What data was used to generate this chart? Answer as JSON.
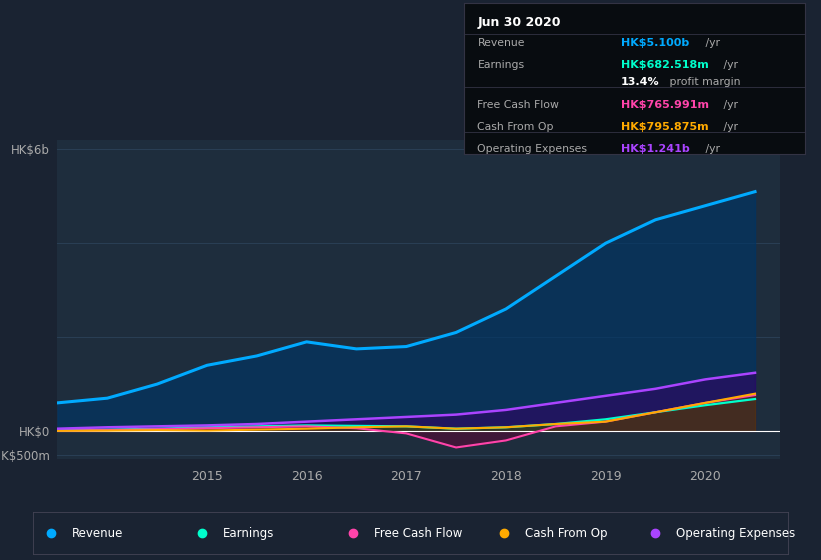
{
  "bg_color": "#1a2332",
  "plot_bg_color": "#1e2d3d",
  "grid_color": "#2a3f55",
  "years": [
    2013.5,
    2014.0,
    2014.5,
    2015.0,
    2015.5,
    2016.0,
    2016.5,
    2017.0,
    2017.5,
    2018.0,
    2018.5,
    2019.0,
    2019.5,
    2020.0,
    2020.5
  ],
  "revenue": [
    600,
    700,
    1000,
    1400,
    1600,
    1900,
    1750,
    1800,
    2100,
    2600,
    3300,
    4000,
    4500,
    4800,
    5100
  ],
  "earnings": [
    20,
    30,
    50,
    80,
    100,
    120,
    110,
    100,
    50,
    80,
    150,
    250,
    400,
    550,
    682
  ],
  "free_cash_flow": [
    10,
    20,
    40,
    60,
    80,
    100,
    60,
    -50,
    -350,
    -200,
    100,
    200,
    400,
    600,
    766
  ],
  "cash_from_op": [
    5,
    10,
    20,
    10,
    30,
    50,
    80,
    100,
    50,
    80,
    150,
    200,
    400,
    600,
    796
  ],
  "operating_expenses": [
    50,
    80,
    100,
    120,
    150,
    200,
    250,
    300,
    350,
    450,
    600,
    750,
    900,
    1100,
    1241
  ],
  "revenue_color": "#00aaff",
  "earnings_color": "#00ffcc",
  "fcf_color": "#ff44aa",
  "cashop_color": "#ffaa00",
  "opex_color": "#aa44ff",
  "revenue_fill": "#003566",
  "earnings_fill": "#004433",
  "fcf_fill": "#660033",
  "cashop_fill": "#554400",
  "opex_fill": "#330066",
  "ylim_min": -600,
  "ylim_max": 6200,
  "xlabel_years": [
    2015,
    2016,
    2017,
    2018,
    2019,
    2020
  ],
  "tooltip_title": "Jun 30 2020",
  "tooltip_rows": [
    {
      "label": "Revenue",
      "value": "HK$5.100b",
      "unit": " /yr",
      "color": "#00aaff",
      "sep_before": false
    },
    {
      "label": "Earnings",
      "value": "HK$682.518m",
      "unit": " /yr",
      "color": "#00ffcc",
      "sep_before": false
    },
    {
      "label": "",
      "value": "13.4%",
      "unit": " profit margin",
      "color": "#ffffff",
      "sep_before": false
    },
    {
      "label": "Free Cash Flow",
      "value": "HK$765.991m",
      "unit": " /yr",
      "color": "#ff44aa",
      "sep_before": true
    },
    {
      "label": "Cash From Op",
      "value": "HK$795.875m",
      "unit": " /yr",
      "color": "#ffaa00",
      "sep_before": false
    },
    {
      "label": "Operating Expenses",
      "value": "HK$1.241b",
      "unit": " /yr",
      "color": "#aa44ff",
      "sep_before": false
    }
  ],
  "legend_items": [
    {
      "label": "Revenue",
      "color": "#00aaff"
    },
    {
      "label": "Earnings",
      "color": "#00ffcc"
    },
    {
      "label": "Free Cash Flow",
      "color": "#ff44aa"
    },
    {
      "label": "Cash From Op",
      "color": "#ffaa00"
    },
    {
      "label": "Operating Expenses",
      "color": "#aa44ff"
    }
  ]
}
